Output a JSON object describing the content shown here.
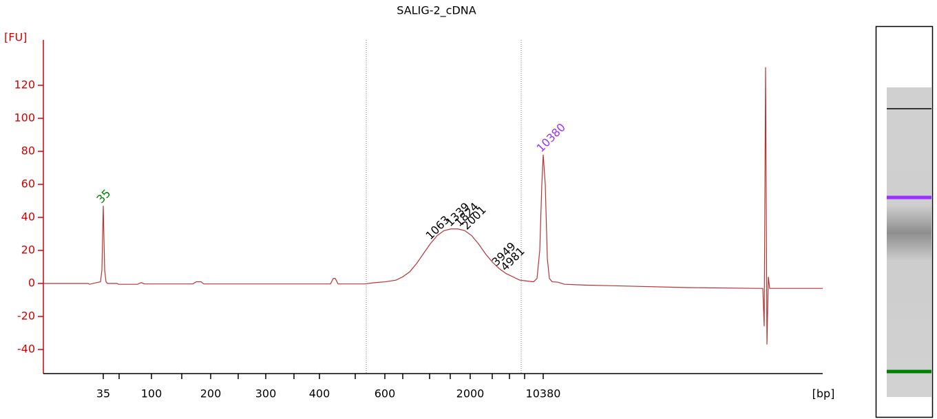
{
  "chart_data": {
    "type": "line",
    "title": "SALIG-2_cDNA",
    "ylabel": "[FU]",
    "xlabel": "[bp]",
    "color": "#b83232",
    "axis_color": "#d40000",
    "xlim": [
      19,
      75.6
    ],
    "ylim": [
      -54.6,
      147.5
    ],
    "yticks": [
      -40,
      -20,
      0,
      20,
      40,
      60,
      80,
      100,
      120
    ],
    "xticks": [
      {
        "value": 23.35,
        "label": "35"
      },
      {
        "value": 26.85,
        "label": "100"
      },
      {
        "value": 31.15,
        "label": "200"
      },
      {
        "value": 35.15,
        "label": "300"
      },
      {
        "value": 39.05,
        "label": "400"
      },
      {
        "value": 43.8,
        "label": "600"
      },
      {
        "value": 50,
        "label": "2000"
      },
      {
        "value": 55.3,
        "label": "10380"
      }
    ],
    "xminor_ticks": [
      24.5,
      29.05,
      33.15,
      37.2,
      41.65,
      45.1,
      47.05,
      48.55,
      51.6,
      52.85,
      53.95
    ],
    "region_lines": [
      42.45,
      53.7
    ],
    "x": [
      19,
      22.25,
      22.35,
      23.15,
      23.25,
      23.35,
      23.45,
      23.55,
      23.65,
      24.35,
      24.45,
      25.85,
      26.1,
      26.35,
      29.85,
      30.1,
      30.45,
      30.65,
      39.85,
      40.05,
      40.2,
      40.4,
      42.35,
      43.1,
      43.85,
      44.6,
      45.1,
      45.6,
      46.1,
      46.6,
      47.1,
      47.6,
      48.1,
      48.6,
      49.1,
      49.6,
      50.1,
      50.6,
      51.1,
      51.6,
      52.1,
      52.6,
      53.1,
      53.6,
      54.1,
      54.6,
      54.85,
      55.05,
      55.2,
      55.3,
      55.45,
      55.6,
      55.75,
      55.95,
      56.35,
      56.85,
      58.35,
      60.85,
      65.85,
      70.85,
      71.25,
      71.35,
      71.45,
      71.55,
      71.65,
      71.75,
      75.6
    ],
    "values": [
      0,
      0,
      -0.5,
      1,
      8,
      47,
      8,
      1,
      0,
      0,
      -0.5,
      -0.5,
      0.5,
      -0.3,
      -0.3,
      1,
      1,
      -0.3,
      -0.3,
      3,
      3,
      -0.3,
      -0.3,
      0.5,
      1,
      2,
      4,
      7,
      12,
      18,
      24,
      29,
      32,
      33,
      33,
      32,
      29,
      24,
      18,
      13,
      9,
      6,
      4,
      2,
      1.5,
      1,
      3,
      20,
      60,
      78,
      60,
      15,
      3,
      1,
      0.8,
      -0.5,
      -1,
      -1.5,
      -2.5,
      -3,
      -3,
      -26,
      131,
      -37,
      4,
      -3,
      -3
    ],
    "annotations": [
      {
        "text": "35",
        "x": 23.35,
        "y": 47,
        "color": "#008000"
      },
      {
        "text": "10380",
        "x": 55.3,
        "y": 78,
        "color": "#9b30ff"
      },
      {
        "text": "1063",
        "x": 47.25,
        "y": 25,
        "color": "#000000"
      },
      {
        "text": "1339",
        "x": 48.7,
        "y": 33,
        "color": "#000000"
      },
      {
        "text": "1824",
        "x": 49.35,
        "y": 33,
        "color": "#000000"
      },
      {
        "text": "2001",
        "x": 49.9,
        "y": 31,
        "color": "#000000"
      },
      {
        "text": "3949",
        "x": 52.05,
        "y": 9,
        "color": "#000000"
      },
      {
        "text": "4981",
        "x": 52.7,
        "y": 6,
        "color": "#000000"
      }
    ]
  }
}
